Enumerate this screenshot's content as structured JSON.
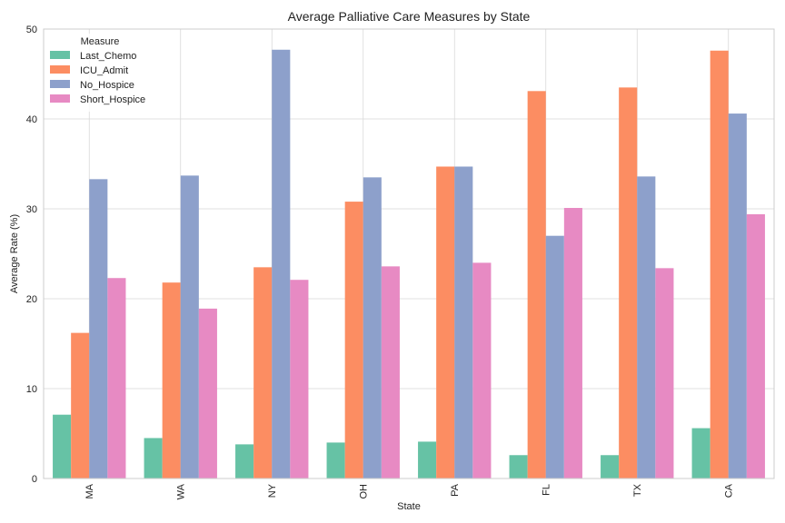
{
  "chart_data": {
    "type": "bar",
    "title": "Average Palliative Care Measures by State",
    "xlabel": "State",
    "ylabel": "Average Rate (%)",
    "ylim": [
      0,
      50
    ],
    "yticks": [
      0,
      10,
      20,
      30,
      40,
      50
    ],
    "grid": true,
    "legend": {
      "title": "Measure",
      "placement": "top-left"
    },
    "categories": [
      "MA",
      "WA",
      "NY",
      "OH",
      "PA",
      "FL",
      "TX",
      "CA"
    ],
    "series": [
      {
        "name": "Last_Chemo",
        "color": "#66c2a5",
        "values": [
          7.1,
          4.5,
          3.8,
          4.0,
          4.1,
          2.6,
          2.6,
          5.6
        ]
      },
      {
        "name": "ICU_Admit",
        "color": "#fc8d62",
        "values": [
          16.2,
          21.8,
          23.5,
          30.8,
          34.7,
          43.1,
          43.5,
          47.6
        ]
      },
      {
        "name": "No_Hospice",
        "color": "#8da0cb",
        "values": [
          33.3,
          33.7,
          47.7,
          33.5,
          34.7,
          27.0,
          33.6,
          40.6
        ]
      },
      {
        "name": "Short_Hospice",
        "color": "#e78ac3",
        "values": [
          22.3,
          18.9,
          22.1,
          23.6,
          24.0,
          30.1,
          23.4,
          29.4
        ]
      }
    ]
  }
}
